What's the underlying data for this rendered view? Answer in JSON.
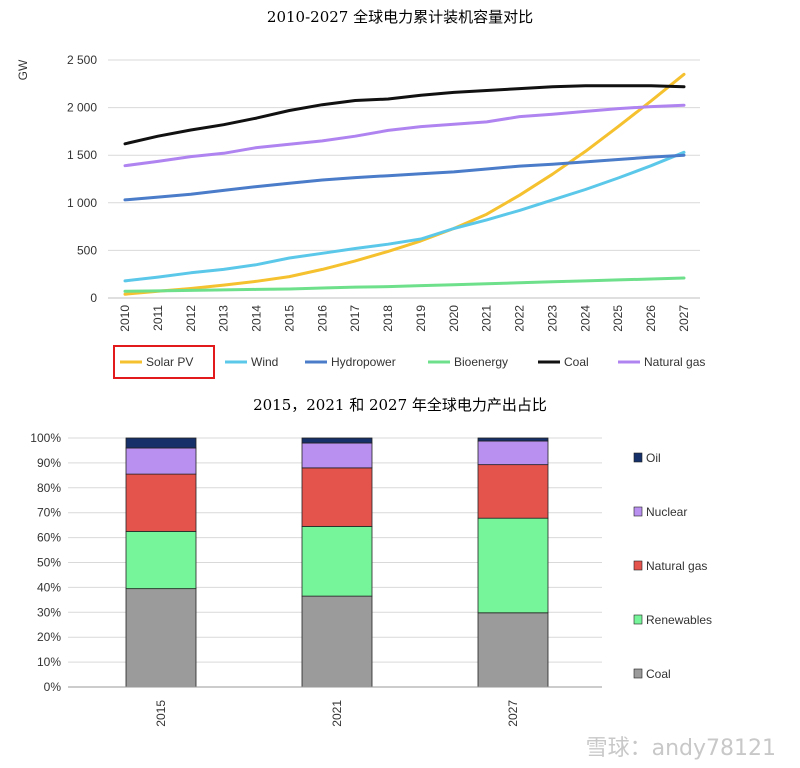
{
  "chart_data": [
    {
      "type": "line",
      "title": "2010-2027 全球电力累计装机容量对比",
      "ylabel": "GW",
      "ylim": [
        0,
        2500
      ],
      "yticks": [
        0,
        500,
        1000,
        1500,
        2000,
        2500
      ],
      "ytick_labels": [
        "0",
        "500",
        "1 000",
        "1 500",
        "2 000",
        "2 500"
      ],
      "x": [
        "2010",
        "2011",
        "2012",
        "2013",
        "2014",
        "2015",
        "2016",
        "2017",
        "2018",
        "2019",
        "2020",
        "2021",
        "2022",
        "2023",
        "2024",
        "2025",
        "2026",
        "2027"
      ],
      "grid": "horizontal",
      "legend": "bottom",
      "highlighted_legend_entry": "Solar PV",
      "series": [
        {
          "name": "Solar PV",
          "color": "#f5c12e",
          "values": [
            40,
            70,
            100,
            135,
            175,
            225,
            300,
            390,
            490,
            600,
            730,
            880,
            1080,
            1300,
            1540,
            1800,
            2070,
            2350
          ]
        },
        {
          "name": "Wind",
          "color": "#5bc8ea",
          "values": [
            180,
            220,
            265,
            300,
            350,
            420,
            470,
            520,
            565,
            620,
            730,
            820,
            920,
            1030,
            1140,
            1260,
            1390,
            1530
          ]
        },
        {
          "name": "Hydropower",
          "color": "#4a7cc9",
          "values": [
            1030,
            1060,
            1090,
            1130,
            1170,
            1205,
            1240,
            1265,
            1285,
            1305,
            1325,
            1355,
            1385,
            1405,
            1430,
            1455,
            1480,
            1500
          ]
        },
        {
          "name": "Bioenergy",
          "color": "#6ee08c",
          "values": [
            70,
            75,
            80,
            85,
            90,
            95,
            105,
            115,
            120,
            130,
            140,
            150,
            160,
            170,
            180,
            190,
            200,
            210
          ]
        },
        {
          "name": "Coal",
          "color": "#111111",
          "values": [
            1620,
            1700,
            1765,
            1820,
            1890,
            1970,
            2030,
            2075,
            2090,
            2130,
            2160,
            2180,
            2200,
            2220,
            2230,
            2230,
            2230,
            2220
          ]
        },
        {
          "name": "Natural gas",
          "color": "#b084f0",
          "values": [
            1390,
            1435,
            1485,
            1520,
            1580,
            1615,
            1650,
            1700,
            1760,
            1800,
            1825,
            1850,
            1905,
            1930,
            1960,
            1990,
            2010,
            2025
          ]
        }
      ]
    },
    {
      "type": "bar",
      "stacked": true,
      "title": "2015，2021 和 2027 年全球电力产出占比",
      "ylim": [
        0,
        100
      ],
      "yticks": [
        0,
        10,
        20,
        30,
        40,
        50,
        60,
        70,
        80,
        90,
        100
      ],
      "ytick_labels": [
        "0%",
        "10%",
        "20%",
        "30%",
        "40%",
        "50%",
        "60%",
        "70%",
        "80%",
        "90%",
        "100%"
      ],
      "categories": [
        "2015",
        "2021",
        "2027"
      ],
      "legend": "right",
      "series": [
        {
          "name": "Coal",
          "color": "#9b9b9b",
          "values": [
            39.5,
            36.5,
            29.8
          ]
        },
        {
          "name": "Renewables",
          "color": "#77f59a",
          "values": [
            23,
            28,
            38
          ]
        },
        {
          "name": "Natural gas",
          "color": "#e5534d",
          "values": [
            23,
            23.5,
            21.5
          ]
        },
        {
          "name": "Nuclear",
          "color": "#b990f0",
          "values": [
            10.5,
            10,
            9.5
          ]
        },
        {
          "name": "Oil",
          "color": "#16306a",
          "values": [
            4,
            2,
            1.2
          ]
        }
      ]
    }
  ],
  "watermark": "雪球：andy78121"
}
